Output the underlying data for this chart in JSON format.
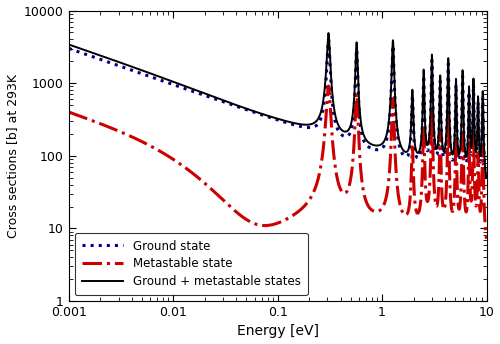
{
  "xlim": [
    0.001,
    10
  ],
  "ylim": [
    1,
    10000
  ],
  "xlabel": "Energy [eV]",
  "ylabel": "Cross sections [b] at 293K",
  "legend_entries": [
    "Ground state",
    "Metastable state",
    "Ground + metastable states"
  ],
  "ground_color": "#00008B",
  "metastable_color": "#CC0000",
  "total_color": "#000000",
  "background_color": "#ffffff",
  "xtick_labels": [
    "0.001",
    "0.01",
    "0.1",
    "1",
    "10"
  ],
  "xtick_vals": [
    0.001,
    0.01,
    0.1,
    1,
    10
  ],
  "ytick_labels": [
    "1",
    "10",
    "100",
    "1000",
    "10000"
  ],
  "ytick_vals": [
    1,
    10,
    100,
    1000,
    10000
  ]
}
